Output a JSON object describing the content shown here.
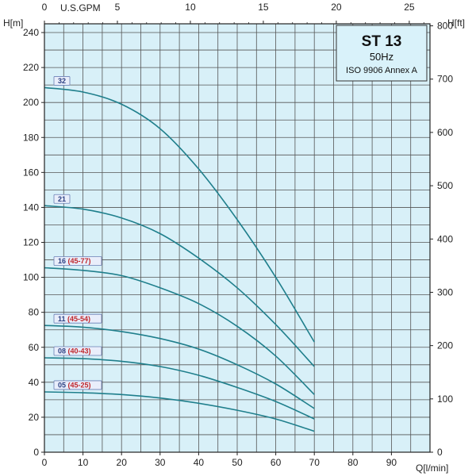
{
  "chart_data": {
    "type": "line",
    "title": "ST 13",
    "subtitle_line1": "50Hz",
    "subtitle_line2": "ISO 9906 Annex A",
    "x_axis": {
      "label": "Q[l/min]",
      "range": [
        0,
        100
      ],
      "ticks": [
        "0",
        "10",
        "20",
        "30",
        "40",
        "50",
        "60",
        "70",
        "80",
        "90"
      ],
      "tick_values": [
        0,
        10,
        20,
        30,
        40,
        50,
        60,
        70,
        80,
        90
      ]
    },
    "y_axis": {
      "label": "H[m]",
      "range": [
        0,
        245
      ],
      "ticks": [
        "0",
        "20",
        "40",
        "60",
        "80",
        "100",
        "120",
        "140",
        "160",
        "180",
        "200",
        "220",
        "240"
      ],
      "tick_values": [
        0,
        20,
        40,
        60,
        80,
        100,
        120,
        140,
        160,
        180,
        200,
        220,
        240
      ]
    },
    "x_axis_top": {
      "label": "U.S.GPM",
      "ticks": [
        "0",
        "5",
        "10",
        "15",
        "20",
        "25"
      ],
      "tick_values": [
        0,
        5,
        10,
        15,
        20,
        25
      ],
      "lpm_per_unit": 3.785
    },
    "y_axis_right": {
      "label": "H[ft]",
      "ticks": [
        "0",
        "100",
        "200",
        "300",
        "400",
        "500",
        "600",
        "700",
        "800"
      ],
      "tick_values": [
        0,
        100,
        200,
        300,
        400,
        500,
        600,
        700,
        800
      ],
      "m_per_unit": 0.3048
    },
    "grid": true,
    "series": [
      {
        "name_main": "32",
        "name_sub": "",
        "x": [
          0,
          10,
          20,
          30,
          40,
          50,
          60,
          70
        ],
        "values": [
          208.5,
          206,
          199,
          185,
          162,
          133,
          100,
          63
        ]
      },
      {
        "name_main": "21",
        "name_sub": "",
        "x": [
          0,
          10,
          20,
          30,
          40,
          50,
          60,
          70
        ],
        "values": [
          141,
          139,
          134,
          125,
          111,
          94,
          73,
          49
        ]
      },
      {
        "name_main": "16",
        "name_sub": "(45-77)",
        "x": [
          0,
          10,
          20,
          30,
          40,
          50,
          60,
          70
        ],
        "values": [
          105.5,
          104,
          101,
          94,
          85,
          72,
          55,
          33
        ]
      },
      {
        "name_main": "11",
        "name_sub": "(45-54)",
        "x": [
          0,
          10,
          20,
          30,
          40,
          50,
          60,
          70
        ],
        "values": [
          72.5,
          71.5,
          69,
          65,
          59,
          50,
          39,
          25
        ]
      },
      {
        "name_main": "08",
        "name_sub": "(40-43)",
        "x": [
          0,
          10,
          20,
          30,
          40,
          50,
          60,
          70
        ],
        "values": [
          54,
          53.5,
          52,
          49,
          44,
          37,
          29,
          19
        ]
      },
      {
        "name_main": "05",
        "name_sub": "(45-25)",
        "x": [
          0,
          10,
          20,
          30,
          40,
          50,
          60,
          70
        ],
        "values": [
          34.5,
          34,
          33,
          31,
          28,
          24,
          19,
          12
        ]
      }
    ]
  }
}
